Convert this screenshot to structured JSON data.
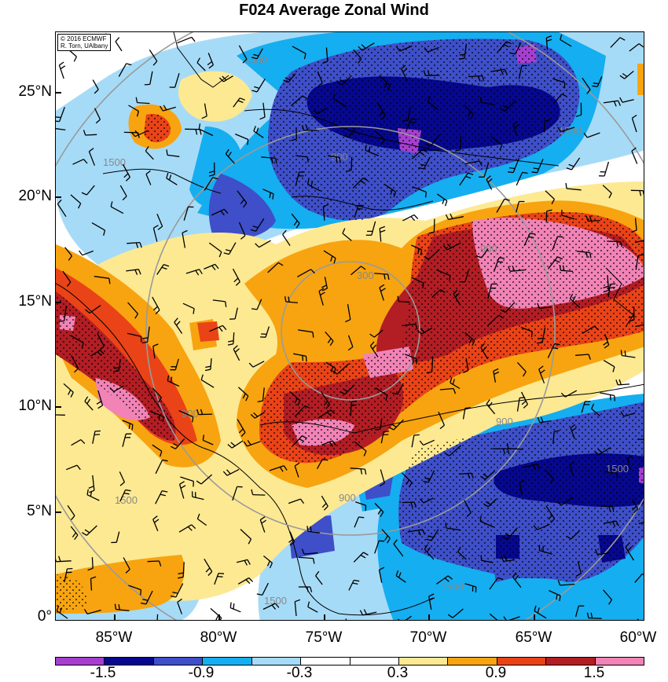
{
  "title": "F024 Average Zonal Wind",
  "credit": {
    "line1": "© 2016 ECMWF",
    "line2": "R. Torn, UAlbany"
  },
  "y_ticks": [
    "25°N",
    "20°N",
    "15°N",
    "10°N",
    "5°N",
    "0°"
  ],
  "x_ticks": [
    "85°W",
    "80°W",
    "75°W",
    "70°W",
    "65°W",
    "60°W"
  ],
  "contour_labels": [
    "300",
    "900",
    "1500"
  ],
  "colorbar": {
    "colors": [
      "#a63fd0",
      "#06088f",
      "#3e4fc9",
      "#15aef0",
      "#a6dbf7",
      "#ffffff",
      "#ffffff",
      "#fde992",
      "#f7a410",
      "#ea4317",
      "#b31d24",
      "#f183b6"
    ],
    "labels": [
      "-1.5",
      "-0.9",
      "-0.3",
      "0.3",
      "0.9",
      "1.5"
    ]
  },
  "colors": {
    "violet": "#a63fd0",
    "navy": "#06088f",
    "blue": "#3e4fc9",
    "cyan": "#15aef0",
    "lightblue": "#a6dbf7",
    "yellow": "#fde992",
    "orange": "#f7a410",
    "redorange": "#ea4317",
    "darkred": "#b31d24",
    "pink": "#f183b6",
    "contour": "#9a9a9a"
  }
}
